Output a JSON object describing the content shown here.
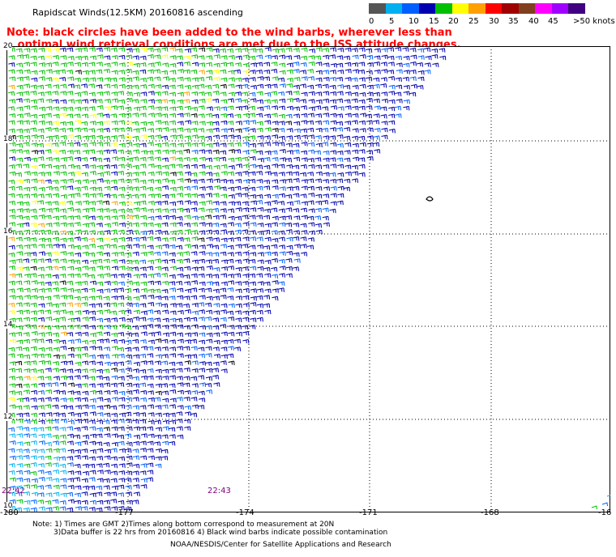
{
  "title": "Rapidscat Winds(12.5KM) 20160816 ascending",
  "note_lines": [
    "Note: black circles have been added to the wind barbs, wherever less than",
    "   optimal wind retrieval conditions are met due to the ISS attitude changes."
  ],
  "colorbar": {
    "colors": [
      "#555555",
      "#00b0f0",
      "#0060ff",
      "#0000b0",
      "#00c000",
      "#ffff00",
      "#ffa000",
      "#ff0000",
      "#a00000",
      "#804020",
      "#ff00ff",
      "#a000ff",
      "#400080"
    ],
    "labels": [
      "0",
      "5",
      "10",
      "15",
      "20",
      "25",
      "30",
      "35",
      "40",
      "45",
      ">50 knots"
    ]
  },
  "lat_labels": [
    "20",
    "18",
    "16",
    "14",
    "12",
    "10"
  ],
  "lon_labels": [
    "-180",
    "-177",
    "-174",
    "-171",
    "-168",
    "-16"
  ],
  "time_labels": [
    "22:42",
    "22:43"
  ],
  "footer": {
    "line1": "Note: 1) Times are GMT 2)Times along bottom correspond to measurement at 20N",
    "line2": "3)Data buffer is 22 hrs from 20160816 4) Black wind barbs indicate possible contamination",
    "line3": "NOAA/NESDIS/Center for Satellite Applications and Research"
  },
  "map_data": {
    "lat_range": [
      10,
      20
    ],
    "lon_range": [
      -180,
      -165
    ],
    "swath_color_bands": [
      "#0000b0",
      "#00c000",
      "#ffff00",
      "#00b0f0",
      "#0060ff"
    ]
  }
}
